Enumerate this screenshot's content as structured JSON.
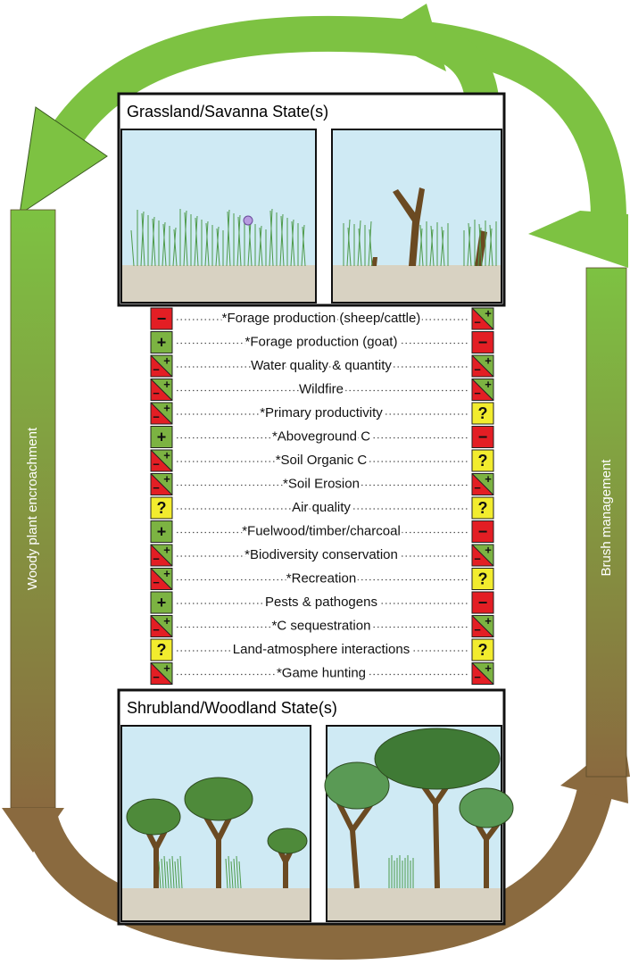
{
  "top_state": {
    "title": "Grassland/Savanna State(s)"
  },
  "bottom_state": {
    "title": "Shrubland/Woodland State(s)"
  },
  "arrows": {
    "left": "Woody plant encroachment",
    "right": "Brush management"
  },
  "services": [
    {
      "left": [
        "−"
      ],
      "label": "*Forage production (sheep/cattle)",
      "right": [
        "−",
        "+"
      ]
    },
    {
      "left": [
        "+"
      ],
      "label": "*Forage production (goat)",
      "right": [
        "−"
      ]
    },
    {
      "left": [
        "−",
        "+"
      ],
      "label": "Water quality & quantity",
      "right": [
        "−",
        "+"
      ]
    },
    {
      "left": [
        "−",
        "+"
      ],
      "label": "Wildfire",
      "right": [
        "−",
        "+"
      ]
    },
    {
      "left": [
        "−",
        "+"
      ],
      "label": "*Primary productivity",
      "right": [
        "?"
      ]
    },
    {
      "left": [
        "+"
      ],
      "label": "*Aboveground C",
      "right": [
        "−"
      ]
    },
    {
      "left": [
        "−",
        "+"
      ],
      "label": "*Soil Organic C",
      "right": [
        "?"
      ]
    },
    {
      "left": [
        "−",
        "+"
      ],
      "label": "*Soil Erosion",
      "right": [
        "−",
        "+"
      ]
    },
    {
      "left": [
        "?"
      ],
      "label": "Air quality",
      "right": [
        "?"
      ]
    },
    {
      "left": [
        "+"
      ],
      "label": "*Fuelwood/timber/charcoal",
      "right": [
        "−"
      ]
    },
    {
      "left": [
        "−",
        "+"
      ],
      "label": "*Biodiversity conservation",
      "right": [
        "−",
        "+"
      ]
    },
    {
      "left": [
        "−",
        "+"
      ],
      "label": "*Recreation",
      "right": [
        "?"
      ]
    },
    {
      "left": [
        "+"
      ],
      "label": "Pests & pathogens",
      "right": [
        "−"
      ]
    },
    {
      "left": [
        "−",
        "+"
      ],
      "label": "*C sequestration",
      "right": [
        "−",
        "+"
      ]
    },
    {
      "left": [
        "?"
      ],
      "label": "Land-atmosphere interactions",
      "right": [
        "?"
      ]
    },
    {
      "left": [
        "−",
        "+"
      ],
      "label": "*Game hunting",
      "right": [
        "−",
        "+"
      ]
    }
  ]
}
